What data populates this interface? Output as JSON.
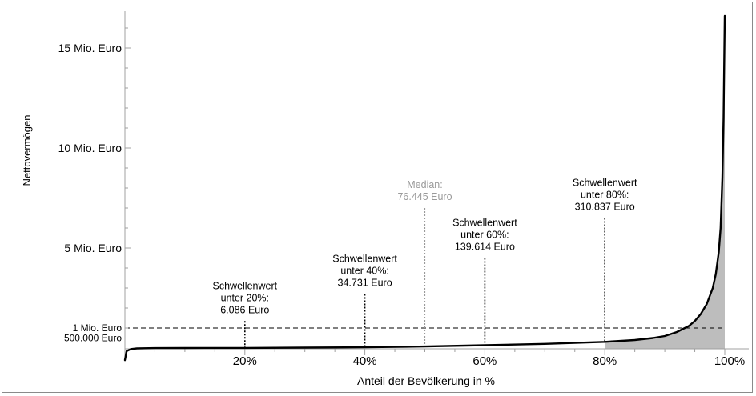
{
  "chart_data": {
    "type": "area",
    "title": "",
    "xlabel": "Anteil der Bevölkerung in %",
    "ylabel": "Nettovermögen",
    "xlim": [
      0,
      100
    ],
    "ylim": [
      -0.1,
      16.6
    ],
    "grid": false,
    "x_ticks": [
      {
        "value": 20,
        "label": "20%"
      },
      {
        "value": 40,
        "label": "40%"
      },
      {
        "value": 60,
        "label": "60%"
      },
      {
        "value": 80,
        "label": "80%"
      },
      {
        "value": 100,
        "label": "100%"
      }
    ],
    "y_ticks": [
      {
        "value": 0.5,
        "label": "500.000 Euro"
      },
      {
        "value": 1,
        "label": "1 Mio. Euro"
      },
      {
        "value": 5,
        "label": "5 Mio. Euro"
      },
      {
        "value": 10,
        "label": "10 Mio. Euro"
      },
      {
        "value": 15,
        "label": "15 Mio. Euro"
      }
    ],
    "reference_lines": [
      {
        "value": 0.5,
        "style": "dashed"
      },
      {
        "value": 1,
        "style": "dashed"
      }
    ],
    "series": [
      {
        "type": "line",
        "color": "#000000",
        "shade_above_percent": 80,
        "shade_color": "#bdbdbd",
        "x": [
          0,
          0.3,
          1,
          2,
          5,
          10,
          15,
          20,
          30,
          40,
          50,
          60,
          70,
          80,
          85,
          88,
          90,
          92,
          94,
          95,
          96,
          97,
          98,
          98.5,
          99,
          99.3,
          99.6,
          99.8,
          100
        ],
        "y": [
          -0.6,
          -0.15,
          -0.05,
          -0.02,
          -0.005,
          0.0,
          0.002,
          0.006,
          0.02,
          0.035,
          0.076,
          0.14,
          0.21,
          0.31,
          0.4,
          0.5,
          0.6,
          0.8,
          1.1,
          1.35,
          1.7,
          2.2,
          3.0,
          3.7,
          4.8,
          6.0,
          8.5,
          11.5,
          16.6
        ]
      }
    ],
    "annotations": [
      {
        "x": 20,
        "y_top": 1.35,
        "lines": [
          "Schwellenwert",
          "unter 20%:",
          "6.086 Euro"
        ],
        "color": "#000000"
      },
      {
        "x": 40,
        "y_top": 2.7,
        "lines": [
          "Schwellenwert",
          "unter 40%:",
          "34.731 Euro"
        ],
        "color": "#000000"
      },
      {
        "x": 50,
        "y_top": 7.0,
        "lines": [
          "Median:",
          "76.445 Euro"
        ],
        "color": "#9a9a9a"
      },
      {
        "x": 60,
        "y_top": 4.5,
        "lines": [
          "Schwellenwert",
          "unter 60%:",
          "139.614 Euro"
        ],
        "color": "#000000"
      },
      {
        "x": 80,
        "y_top": 6.5,
        "lines": [
          "Schwellenwert",
          "unter 80%:",
          "310.837 Euro"
        ],
        "color": "#000000"
      }
    ]
  }
}
